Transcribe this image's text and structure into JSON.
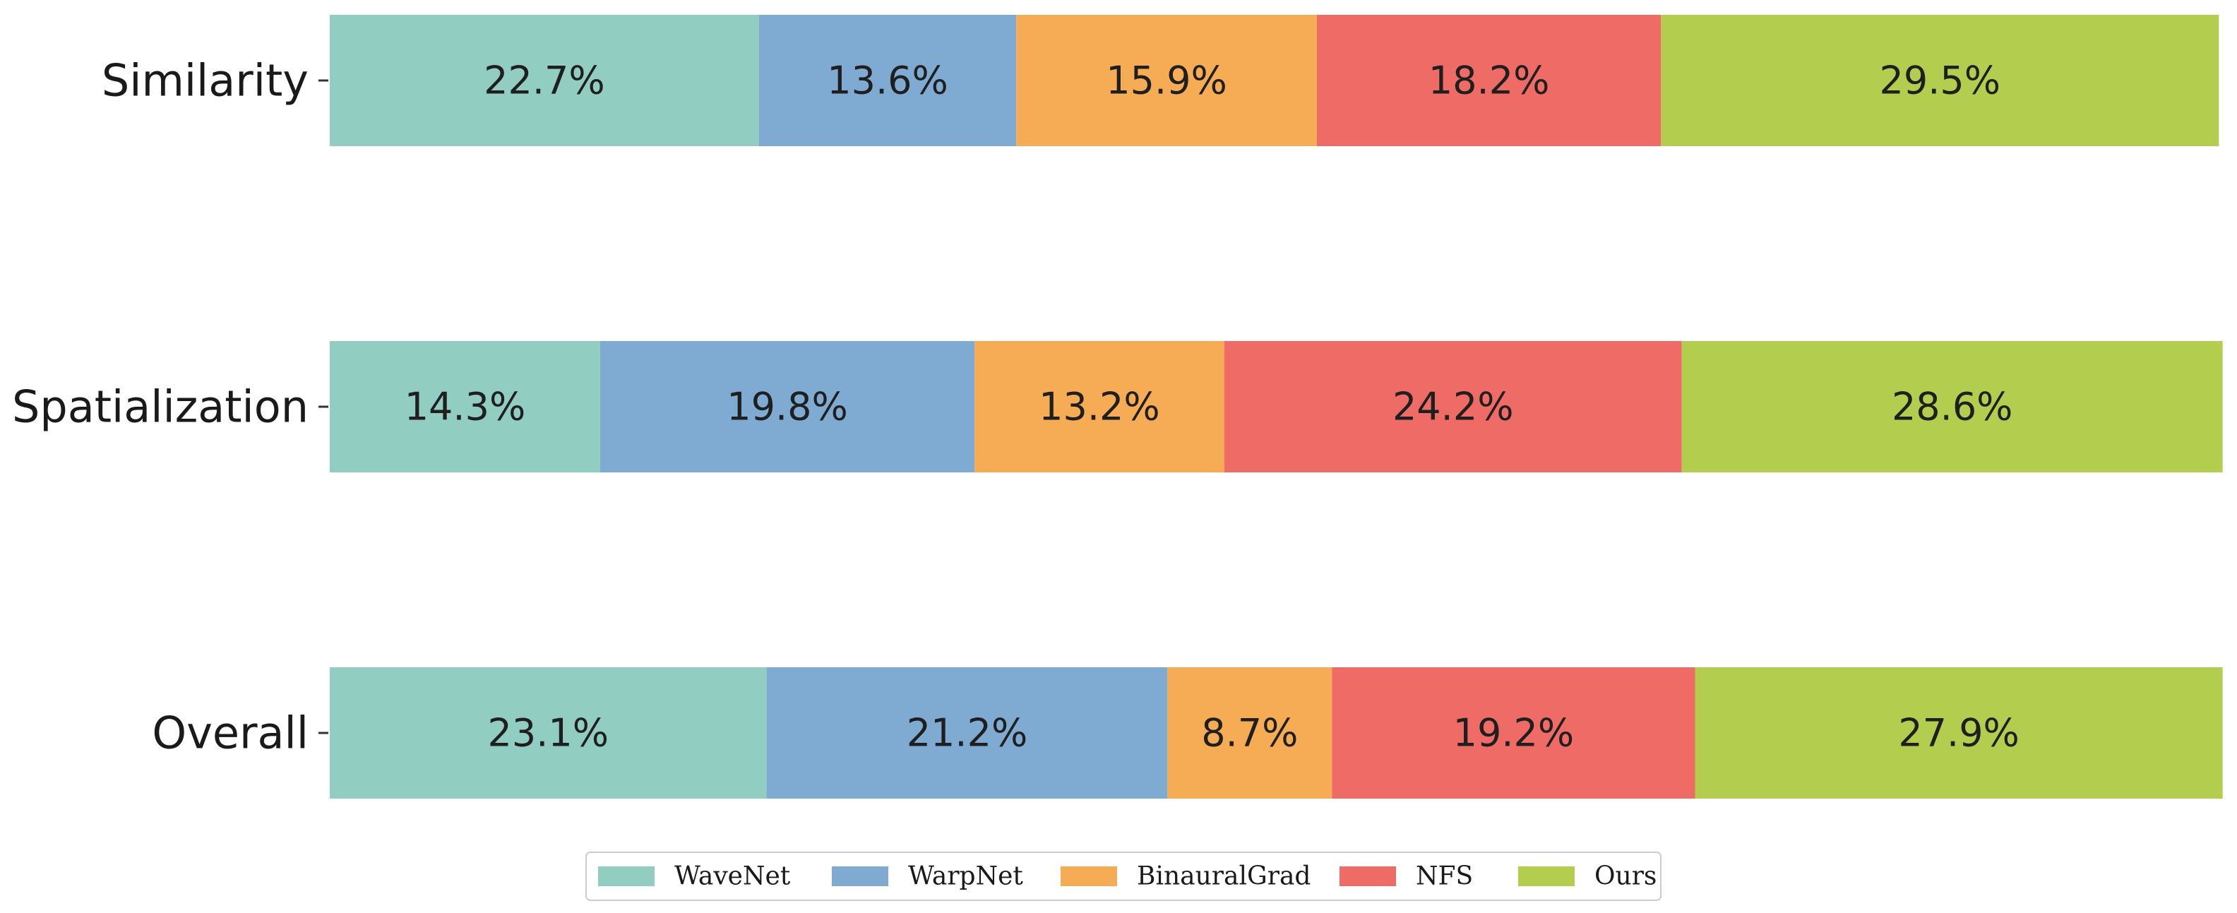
{
  "chart_data": {
    "type": "bar",
    "orientation": "horizontal",
    "stacked": true,
    "categories": [
      "Similarity",
      "Spatialization",
      "Overall"
    ],
    "series": [
      {
        "name": "WaveNet",
        "color": "#91CDC1",
        "values": [
          22.7,
          14.3,
          23.1
        ],
        "labels": [
          "22.7%",
          "14.3%",
          "23.1%"
        ]
      },
      {
        "name": "WarpNet",
        "color": "#7FABD2",
        "values": [
          13.6,
          19.8,
          21.2
        ],
        "labels": [
          "13.6%",
          "19.8%",
          "21.2%"
        ]
      },
      {
        "name": "BinauralGrad",
        "color": "#F6AC55",
        "values": [
          15.9,
          13.2,
          8.7
        ],
        "labels": [
          "15.9%",
          "13.2%",
          "8.7%"
        ]
      },
      {
        "name": "NFS",
        "color": "#EF6B66",
        "values": [
          18.2,
          24.2,
          19.2
        ],
        "labels": [
          "18.2%",
          "24.2%",
          "19.2%"
        ]
      },
      {
        "name": "Ours",
        "color": "#B3CE4F",
        "values": [
          29.5,
          28.6,
          27.9
        ],
        "labels": [
          "29.5%",
          "28.6%",
          "27.9%"
        ]
      }
    ],
    "xlim": [
      0,
      100
    ],
    "title": "",
    "xlabel": "",
    "ylabel": "",
    "grid": false,
    "legend": "bottom-center"
  }
}
